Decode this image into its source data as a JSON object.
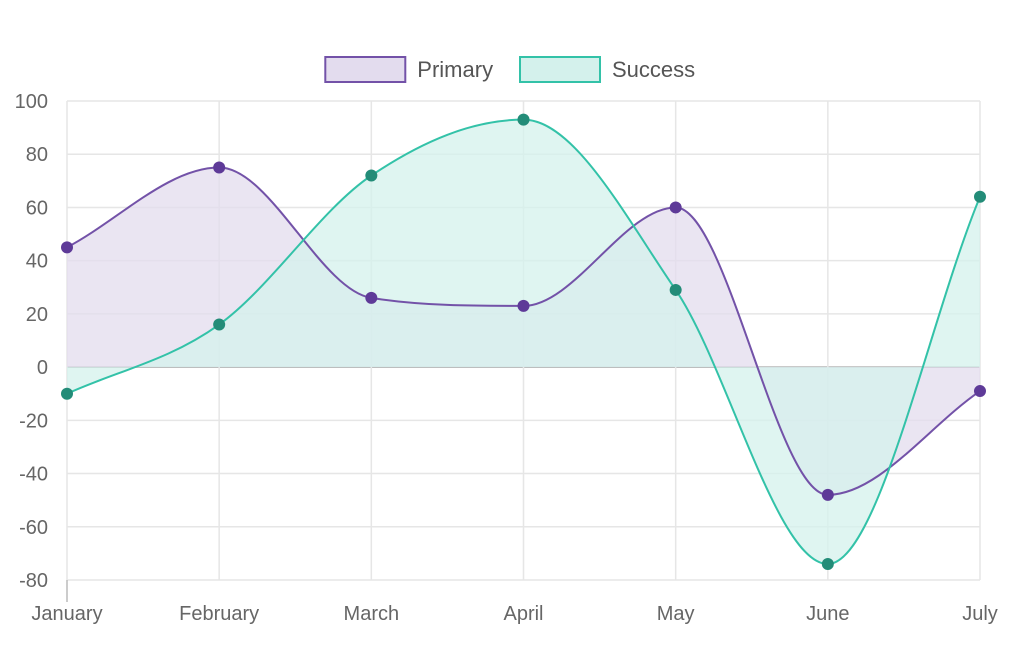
{
  "chart_data": {
    "type": "line",
    "title": "",
    "xlabel": "",
    "ylabel": "",
    "categories": [
      "January",
      "February",
      "March",
      "April",
      "May",
      "June",
      "July"
    ],
    "ylim": [
      -80,
      100
    ],
    "yticks": [
      100,
      80,
      60,
      40,
      20,
      0,
      -20,
      -40,
      -60,
      -80
    ],
    "grid": true,
    "legend_position": "top-center",
    "curve": "smooth",
    "filled": true,
    "series": [
      {
        "name": "Primary",
        "values": [
          45,
          75,
          26,
          23,
          60,
          -48,
          -9
        ],
        "line_color": "#7352a8",
        "fill_color": "#e3dcee",
        "point_color": "#5e3a98"
      },
      {
        "name": "Success",
        "values": [
          -10,
          16,
          72,
          93,
          29,
          -74,
          64
        ],
        "line_color": "#33c2a8",
        "fill_color": "#d4f1ec",
        "point_color": "#238c78"
      }
    ]
  }
}
